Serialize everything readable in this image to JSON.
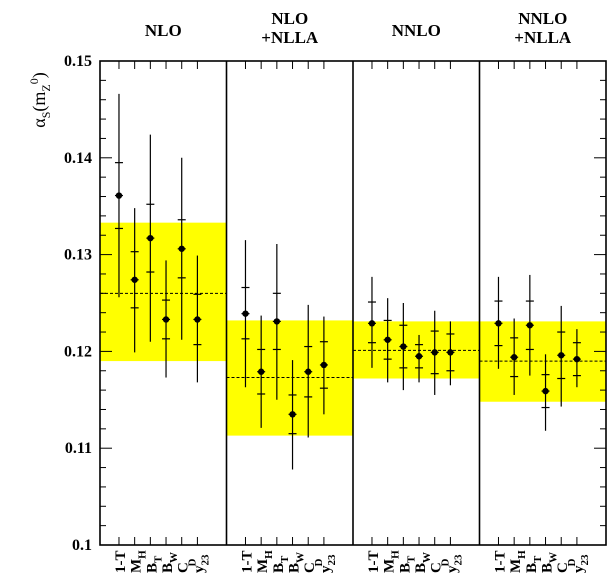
{
  "chart_data": {
    "type": "scatter",
    "ylabel": "α_S(m_Z^0)",
    "ylabel_parts": {
      "main": "α",
      "main_sub": "S",
      "arg_open": "(m",
      "arg_sub": "Z",
      "arg_sup": "0",
      "arg_close": ")"
    },
    "ylim": [
      0.1,
      0.15
    ],
    "yticks": [
      0.1,
      0.11,
      0.12,
      0.13,
      0.14,
      0.15
    ],
    "ytick_labels": [
      "0.1",
      "0.11",
      "0.12",
      "0.13",
      "0.14",
      "0.15"
    ],
    "grid": false,
    "band_color": "#ffff00",
    "marker_color": "#000000",
    "categories": [
      {
        "main": "1-T",
        "sub": "",
        "sup": ""
      },
      {
        "main": "M",
        "sub": "H",
        "sup": ""
      },
      {
        "main": "B",
        "sub": "T",
        "sup": ""
      },
      {
        "main": "B",
        "sub": "W",
        "sup": ""
      },
      {
        "main": "C",
        "sub": "",
        "sup": ""
      },
      {
        "main": "y",
        "sub": "23",
        "sup": "D"
      }
    ],
    "panels": [
      {
        "title_lines": [
          "NLO"
        ],
        "band": {
          "low": 0.119,
          "high": 0.1333,
          "mean": 0.126
        },
        "points": [
          {
            "value": 0.1361,
            "stat_low": 0.1327,
            "stat_high": 0.1395,
            "tot_low": 0.1256,
            "tot_high": 0.1466
          },
          {
            "value": 0.1274,
            "stat_low": 0.1245,
            "stat_high": 0.1303,
            "tot_low": 0.1199,
            "tot_high": 0.1348
          },
          {
            "value": 0.1317,
            "stat_low": 0.1282,
            "stat_high": 0.1352,
            "tot_low": 0.121,
            "tot_high": 0.1424
          },
          {
            "value": 0.1233,
            "stat_low": 0.1213,
            "stat_high": 0.1253,
            "tot_low": 0.1173,
            "tot_high": 0.1294
          },
          {
            "value": 0.1306,
            "stat_low": 0.1276,
            "stat_high": 0.1336,
            "tot_low": 0.1212,
            "tot_high": 0.14
          },
          {
            "value": 0.1233,
            "stat_low": 0.1207,
            "stat_high": 0.1259,
            "tot_low": 0.1168,
            "tot_high": 0.1299
          }
        ]
      },
      {
        "title_lines": [
          "NLO",
          "+NLLA"
        ],
        "band": {
          "low": 0.1113,
          "high": 0.1232,
          "mean": 0.1173
        },
        "points": [
          {
            "value": 0.1239,
            "stat_low": 0.1213,
            "stat_high": 0.1266,
            "tot_low": 0.1163,
            "tot_high": 0.1315
          },
          {
            "value": 0.1179,
            "stat_low": 0.1156,
            "stat_high": 0.1202,
            "tot_low": 0.1121,
            "tot_high": 0.1237
          },
          {
            "value": 0.1231,
            "stat_low": 0.1202,
            "stat_high": 0.126,
            "tot_low": 0.115,
            "tot_high": 0.1311
          },
          {
            "value": 0.1135,
            "stat_low": 0.1115,
            "stat_high": 0.1155,
            "tot_low": 0.1078,
            "tot_high": 0.1191
          },
          {
            "value": 0.1179,
            "stat_low": 0.1153,
            "stat_high": 0.1205,
            "tot_low": 0.1111,
            "tot_high": 0.1248
          },
          {
            "value": 0.1186,
            "stat_low": 0.1162,
            "stat_high": 0.121,
            "tot_low": 0.1135,
            "tot_high": 0.1236
          }
        ]
      },
      {
        "title_lines": [
          "NNLO"
        ],
        "band": {
          "low": 0.1172,
          "high": 0.1231,
          "mean": 0.1201
        },
        "points": [
          {
            "value": 0.1229,
            "stat_low": 0.1209,
            "stat_high": 0.1251,
            "tot_low": 0.1183,
            "tot_high": 0.1277
          },
          {
            "value": 0.1212,
            "stat_low": 0.1192,
            "stat_high": 0.1232,
            "tot_low": 0.1168,
            "tot_high": 0.1255
          },
          {
            "value": 0.1205,
            "stat_low": 0.1183,
            "stat_high": 0.1227,
            "tot_low": 0.116,
            "tot_high": 0.125
          },
          {
            "value": 0.1195,
            "stat_low": 0.1183,
            "stat_high": 0.1207,
            "tot_low": 0.1168,
            "tot_high": 0.1217
          },
          {
            "value": 0.1199,
            "stat_low": 0.1177,
            "stat_high": 0.1221,
            "tot_low": 0.1155,
            "tot_high": 0.1242
          },
          {
            "value": 0.1199,
            "stat_low": 0.118,
            "stat_high": 0.1218,
            "tot_low": 0.1165,
            "tot_high": 0.1231
          }
        ]
      },
      {
        "title_lines": [
          "NNLO",
          "+NLLA"
        ],
        "band": {
          "low": 0.1148,
          "high": 0.1231,
          "mean": 0.119
        },
        "points": [
          {
            "value": 0.1229,
            "stat_low": 0.1206,
            "stat_high": 0.1252,
            "tot_low": 0.1182,
            "tot_high": 0.1277
          },
          {
            "value": 0.1194,
            "stat_low": 0.1174,
            "stat_high": 0.1214,
            "tot_low": 0.1155,
            "tot_high": 0.1234
          },
          {
            "value": 0.1227,
            "stat_low": 0.1202,
            "stat_high": 0.1252,
            "tot_low": 0.1175,
            "tot_high": 0.1279
          },
          {
            "value": 0.1159,
            "stat_low": 0.1142,
            "stat_high": 0.1176,
            "tot_low": 0.1118,
            "tot_high": 0.1197
          },
          {
            "value": 0.1196,
            "stat_low": 0.1172,
            "stat_high": 0.122,
            "tot_low": 0.1143,
            "tot_high": 0.1247
          },
          {
            "value": 0.1192,
            "stat_low": 0.1175,
            "stat_high": 0.1209,
            "tot_low": 0.1163,
            "tot_high": 0.1223
          }
        ]
      }
    ]
  }
}
